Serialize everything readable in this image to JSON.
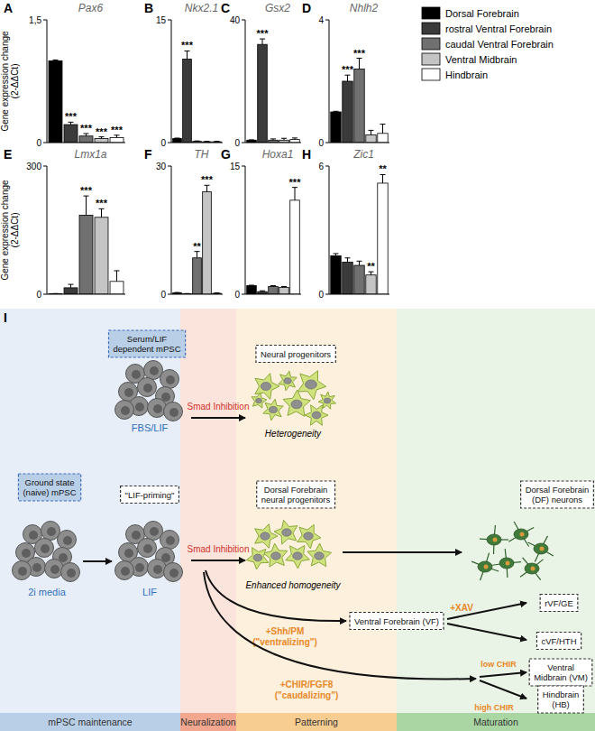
{
  "chart_data": [
    {
      "type": "bar",
      "panel": "A",
      "title": "Pax6",
      "ylabel": [
        "Gene expression change",
        "(2-ΔΔCt)"
      ],
      "categories": [
        "Dorsal Forebrain",
        "rostral Ventral Forebrain",
        "caudal Ventral Forebrain",
        "Ventral Midbrain",
        "Hindbrain"
      ],
      "values": [
        1.0,
        0.22,
        0.08,
        0.05,
        0.06
      ],
      "errors": [
        0.01,
        0.03,
        0.03,
        0.02,
        0.03
      ],
      "significance": [
        null,
        "***",
        "***",
        "***",
        "***"
      ],
      "colors": [
        "#000000",
        "#3b3b3b",
        "#707070",
        "#c4c4c4",
        "#ffffff"
      ],
      "ylim": [
        0,
        1.5
      ],
      "yticks": [
        0,
        {
          "value": 1.5,
          "label": "1,5"
        }
      ],
      "tick_labels": "y",
      "legend": "right"
    },
    {
      "type": "bar",
      "panel": "B",
      "title": "Nkx2.1",
      "categories": [
        "Dorsal Forebrain",
        "rostral Ventral Forebrain",
        "caudal Ventral Forebrain",
        "Ventral Midbrain",
        "Hindbrain"
      ],
      "values": [
        0.5,
        10.2,
        0.15,
        0.1,
        0.1
      ],
      "errors": [
        0.05,
        1.0,
        0.05,
        0.05,
        0.05
      ],
      "significance": [
        null,
        "***",
        null,
        null,
        null
      ],
      "colors": [
        "#000000",
        "#3b3b3b",
        "#707070",
        "#c4c4c4",
        "#ffffff"
      ],
      "ylim": [
        0,
        15
      ],
      "yticks": [
        0,
        15
      ],
      "tick_labels": "y"
    },
    {
      "type": "bar",
      "panel": "C",
      "title": "Gsx2",
      "categories": [
        "Dorsal Forebrain",
        "rostral Ventral Forebrain",
        "caudal Ventral Forebrain",
        "Ventral Midbrain",
        "Hindbrain"
      ],
      "values": [
        0.8,
        32,
        0.8,
        0.8,
        1.0
      ],
      "errors": [
        0.1,
        1.8,
        0.4,
        0.6,
        0.5
      ],
      "significance": [
        null,
        "***",
        null,
        null,
        null
      ],
      "colors": [
        "#000000",
        "#3b3b3b",
        "#707070",
        "#c4c4c4",
        "#ffffff"
      ],
      "ylim": [
        0,
        40
      ],
      "yticks": [
        0,
        40
      ],
      "tick_labels": "y"
    },
    {
      "type": "bar",
      "panel": "D",
      "title": "Nhlh2",
      "categories": [
        "Dorsal Forebrain",
        "rostral Ventral Forebrain",
        "caudal Ventral Forebrain",
        "Ventral Midbrain",
        "Hindbrain"
      ],
      "values": [
        1.0,
        2.0,
        2.4,
        0.25,
        0.3
      ],
      "errors": [
        0.02,
        0.2,
        0.35,
        0.15,
        0.3
      ],
      "significance": [
        null,
        "***",
        "***",
        null,
        null
      ],
      "colors": [
        "#000000",
        "#3b3b3b",
        "#707070",
        "#c4c4c4",
        "#ffffff"
      ],
      "ylim": [
        0,
        4
      ],
      "yticks": [
        0,
        4
      ],
      "tick_labels": "y"
    },
    {
      "type": "bar",
      "panel": "E",
      "title": "Lmx1a",
      "ylabel": [
        "Gene expression change",
        "(2-ΔΔCt)"
      ],
      "categories": [
        "Dorsal Forebrain",
        "rostral Ventral Forebrain",
        "caudal Ventral Forebrain",
        "Ventral Midbrain",
        "Hindbrain"
      ],
      "values": [
        1,
        15,
        185,
        180,
        30
      ],
      "errors": [
        0.5,
        8,
        45,
        20,
        25
      ],
      "significance": [
        null,
        null,
        "***",
        "***",
        null
      ],
      "colors": [
        "#000000",
        "#3b3b3b",
        "#707070",
        "#c4c4c4",
        "#ffffff"
      ],
      "ylim": [
        0,
        300
      ],
      "yticks": [
        0,
        300
      ],
      "tick_labels": "y"
    },
    {
      "type": "bar",
      "panel": "F",
      "title": "TH",
      "categories": [
        "Dorsal Forebrain",
        "rostral Ventral Forebrain",
        "caudal Ventral Forebrain",
        "Ventral Midbrain",
        "Hindbrain"
      ],
      "values": [
        0.3,
        0.1,
        8.5,
        24,
        0.2
      ],
      "errors": [
        0.1,
        0.05,
        1.5,
        1.5,
        0.1
      ],
      "significance": [
        null,
        null,
        "**",
        "***",
        null
      ],
      "colors": [
        "#000000",
        "#3b3b3b",
        "#707070",
        "#c4c4c4",
        "#ffffff"
      ],
      "ylim": [
        0,
        30
      ],
      "yticks": [
        0,
        30
      ],
      "tick_labels": "y"
    },
    {
      "type": "bar",
      "panel": "G",
      "title": "Hoxa1",
      "categories": [
        "Dorsal Forebrain",
        "rostral Ventral Forebrain",
        "caudal Ventral Forebrain",
        "Ventral Midbrain",
        "Hindbrain"
      ],
      "values": [
        1.0,
        0.3,
        0.9,
        0.8,
        11
      ],
      "errors": [
        0.05,
        0.1,
        0.1,
        0.1,
        1.5
      ],
      "significance": [
        null,
        null,
        null,
        null,
        "***"
      ],
      "colors": [
        "#000000",
        "#3b3b3b",
        "#707070",
        "#c4c4c4",
        "#ffffff"
      ],
      "ylim": [
        0,
        15
      ],
      "yticks": [
        0,
        15
      ],
      "tick_labels": "y"
    },
    {
      "type": "bar",
      "panel": "H",
      "title": "Zic1",
      "categories": [
        "Dorsal Forebrain",
        "rostral Ventral Forebrain",
        "caudal Ventral Forebrain",
        "Ventral Midbrain",
        "Hindbrain"
      ],
      "values": [
        1.8,
        1.5,
        1.35,
        0.9,
        5.2
      ],
      "errors": [
        0.1,
        0.2,
        0.2,
        0.15,
        0.4
      ],
      "significance": [
        null,
        null,
        null,
        "**",
        "**"
      ],
      "colors": [
        "#000000",
        "#3b3b3b",
        "#707070",
        "#c4c4c4",
        "#ffffff"
      ],
      "ylim": [
        0,
        6
      ],
      "yticks": [
        0,
        6
      ],
      "tick_labels": "y"
    }
  ],
  "diagram": {
    "panel": "I",
    "stages": [
      "mPSC maintenance",
      "Neuralization",
      "Patterning",
      "Maturation"
    ],
    "serum_mpsc": [
      "Serum/LIF",
      "dependent mPSC"
    ],
    "serum_media": "FBS/LIF",
    "naive_mpsc": [
      "Ground state",
      "(naive) mPSC"
    ],
    "naive_media": "2i media",
    "priming": "\"LIF-priming\"",
    "priming_media": "LIF",
    "neuralization": [
      "Smad Inhibition",
      "Smad Inhibition"
    ],
    "progenitors": "Neural progenitors",
    "heterogeneity": "Heterogeneity",
    "df_progenitors": [
      "Dorsal Forebrain",
      "neural progenitors"
    ],
    "homogeneity": "Enhanced homogeneity",
    "df_neurons": [
      "Dorsal Forebrain",
      "(DF) neurons"
    ],
    "ventralizing": [
      "+Shh/PM",
      "(\"ventralizing\")"
    ],
    "caudalizing": [
      "+CHIR/FGF8",
      "(\"caudalizing\")"
    ],
    "vf": "Ventral Forebrain (VF)",
    "xav": "+XAV",
    "rvf": "rVF/GE",
    "cvf": "cVF/HTH",
    "low_chir": "low CHIR",
    "high_chir": "high CHIR",
    "vm": [
      "Ventral",
      "Midbrain (VM)"
    ],
    "hb": [
      "Hindbrain",
      "(HB)"
    ]
  }
}
